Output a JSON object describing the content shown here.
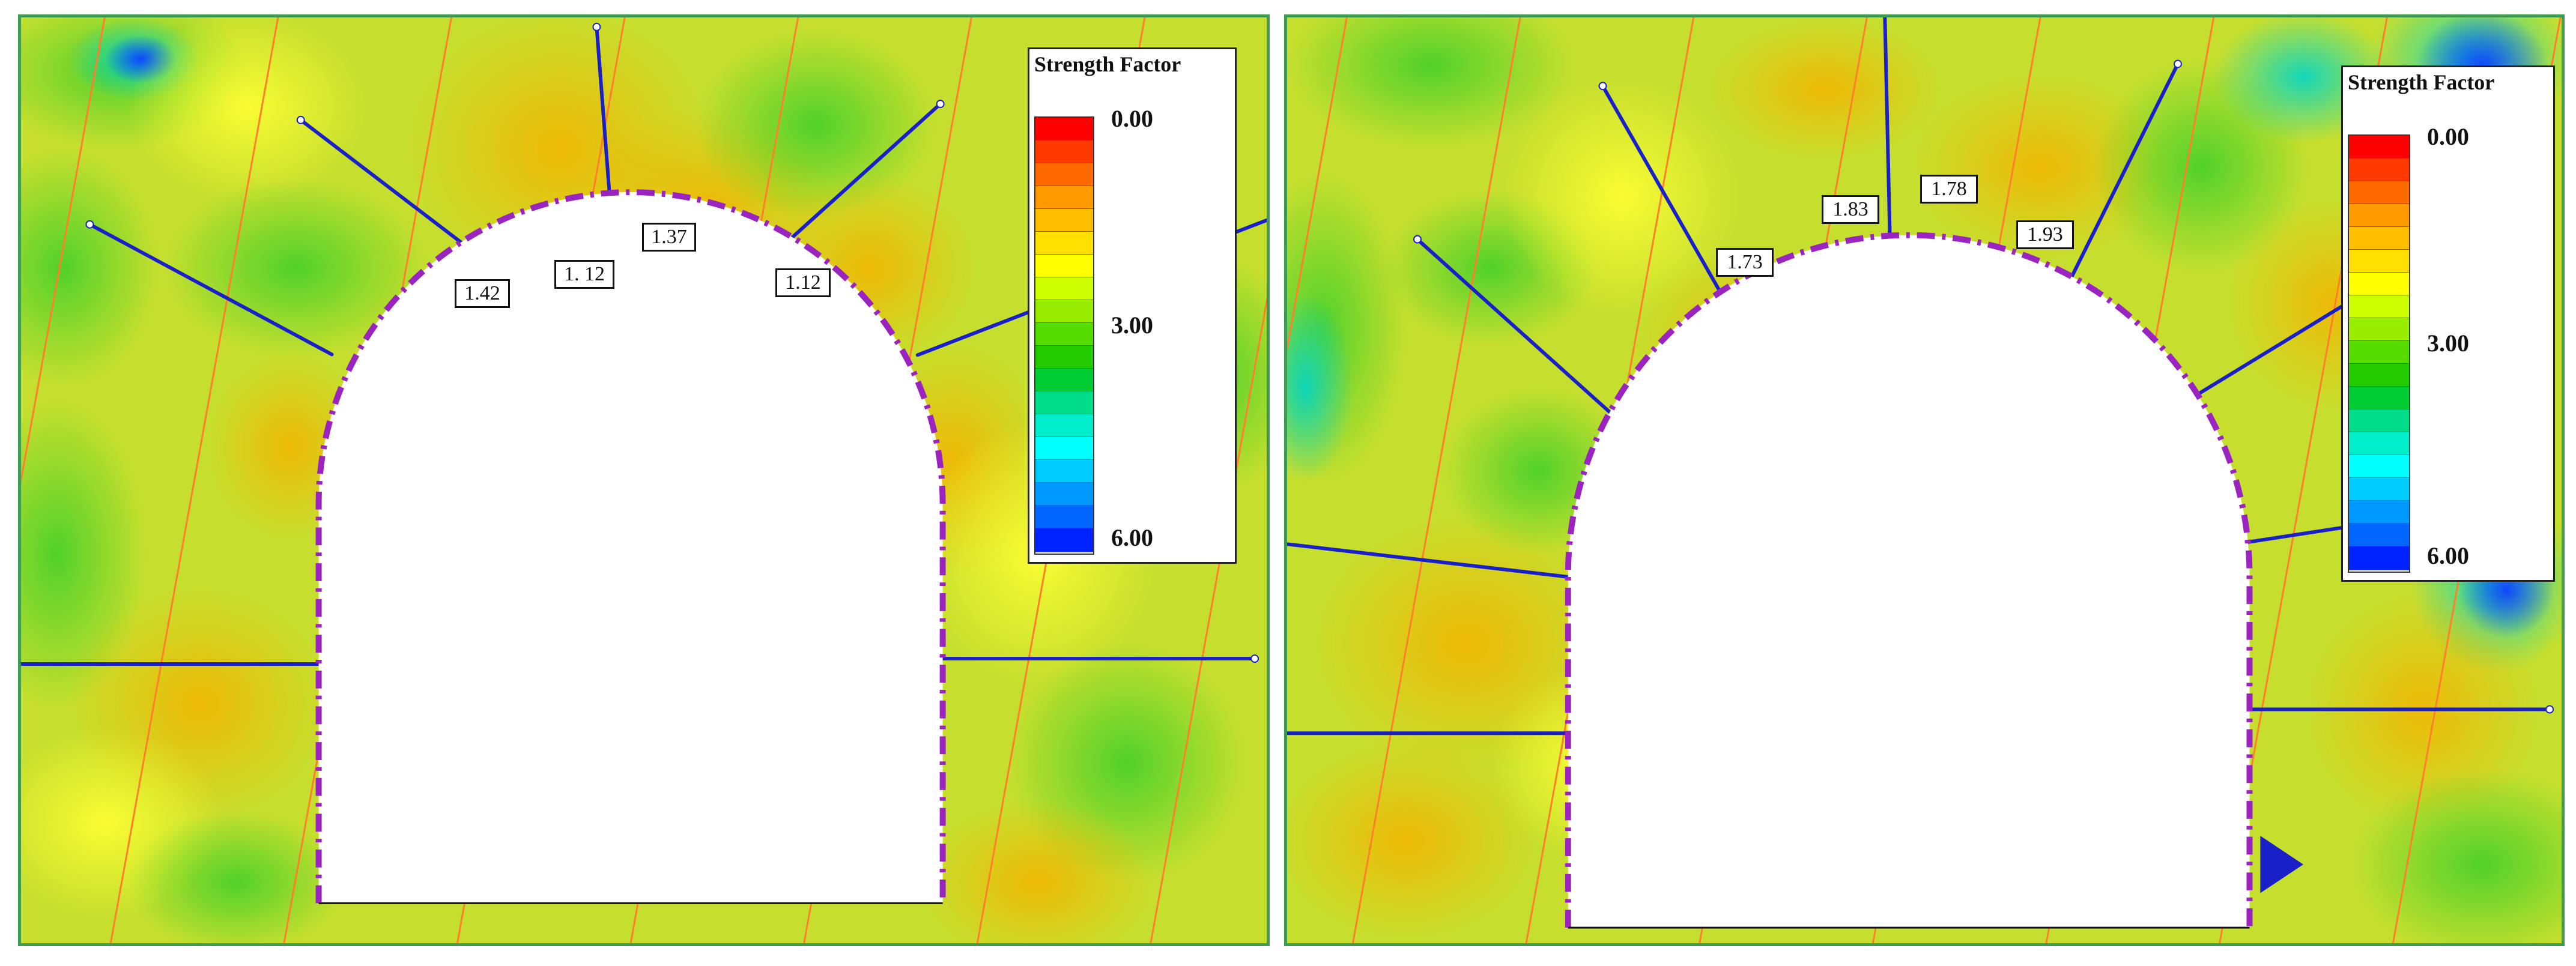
{
  "left_panel": {
    "legend": {
      "title": "Strength Factor",
      "ticks": [
        "0.00",
        "3.00",
        "6.00"
      ],
      "colors": [
        "#ff0000",
        "#ff3a00",
        "#ff6a00",
        "#ff9a00",
        "#ffbe00",
        "#ffe000",
        "#ffff00",
        "#ccff00",
        "#99ee00",
        "#55dd00",
        "#22cc00",
        "#00cc33",
        "#00dd88",
        "#00eecc",
        "#00ffff",
        "#00ccff",
        "#0099ff",
        "#0066ff",
        "#0022ff"
      ]
    },
    "bolt_labels": [
      "1.42",
      "1. 12",
      "1.37",
      "1.12"
    ]
  },
  "right_panel": {
    "legend": {
      "title": "Strength Factor",
      "ticks": [
        "0.00",
        "3.00",
        "6.00"
      ],
      "colors": [
        "#ff0000",
        "#ff3a00",
        "#ff6a00",
        "#ff9a00",
        "#ffbe00",
        "#ffe000",
        "#ffff00",
        "#ccff00",
        "#99ee00",
        "#55dd00",
        "#22cc00",
        "#00cc33",
        "#00dd88",
        "#00eecc",
        "#00ffff",
        "#00ccff",
        "#0099ff",
        "#0066ff",
        "#0022ff"
      ]
    },
    "bolt_labels": [
      "1.73",
      "1.83",
      "1.78",
      "1.93"
    ]
  },
  "colors": {
    "rock_base": "#c6df2e",
    "joint_line": "#ff7f2a",
    "bolt": "#1a20c8",
    "liner": "#9b24c0",
    "frame": "#3f9b4f"
  }
}
